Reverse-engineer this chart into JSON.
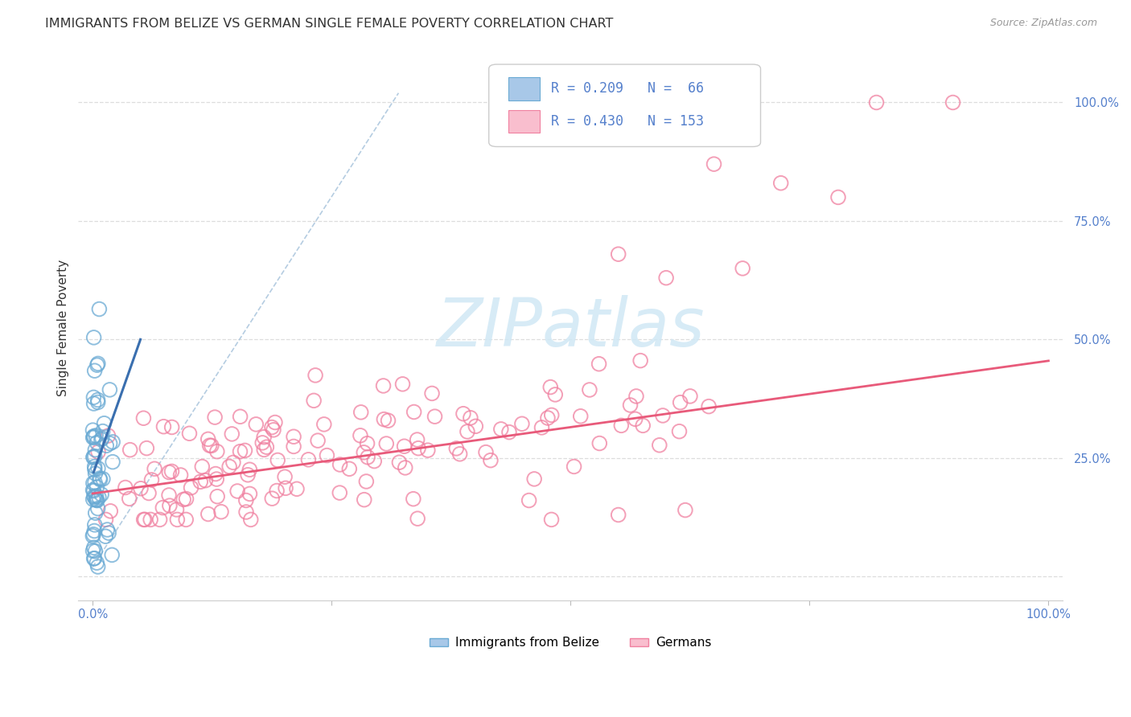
{
  "title": "IMMIGRANTS FROM BELIZE VS GERMAN SINGLE FEMALE POVERTY CORRELATION CHART",
  "source": "Source: ZipAtlas.com",
  "ylabel": "Single Female Poverty",
  "y_ticks": [
    0.0,
    0.25,
    0.5,
    0.75,
    1.0
  ],
  "y_tick_labels": [
    "",
    "25.0%",
    "50.0%",
    "75.0%",
    "100.0%"
  ],
  "belize_R": 0.209,
  "belize_N": 66,
  "german_R": 0.43,
  "german_N": 153,
  "belize_color": "#a8c8e8",
  "belize_edge_color": "#6aaad4",
  "german_color": "#f9bece",
  "german_edge_color": "#f080a0",
  "belize_line_color": "#3a6faf",
  "german_line_color": "#e85a7a",
  "diag_line_color": "#a8c4dc",
  "watermark_color": "#d0e8f5",
  "background_color": "#ffffff",
  "grid_color": "#dddddd",
  "legend_label_belize": "Immigrants from Belize",
  "legend_label_german": "Germans",
  "title_color": "#333333",
  "source_color": "#999999",
  "axis_label_color": "#5580cc",
  "belize_seed": 42,
  "german_seed": 123
}
